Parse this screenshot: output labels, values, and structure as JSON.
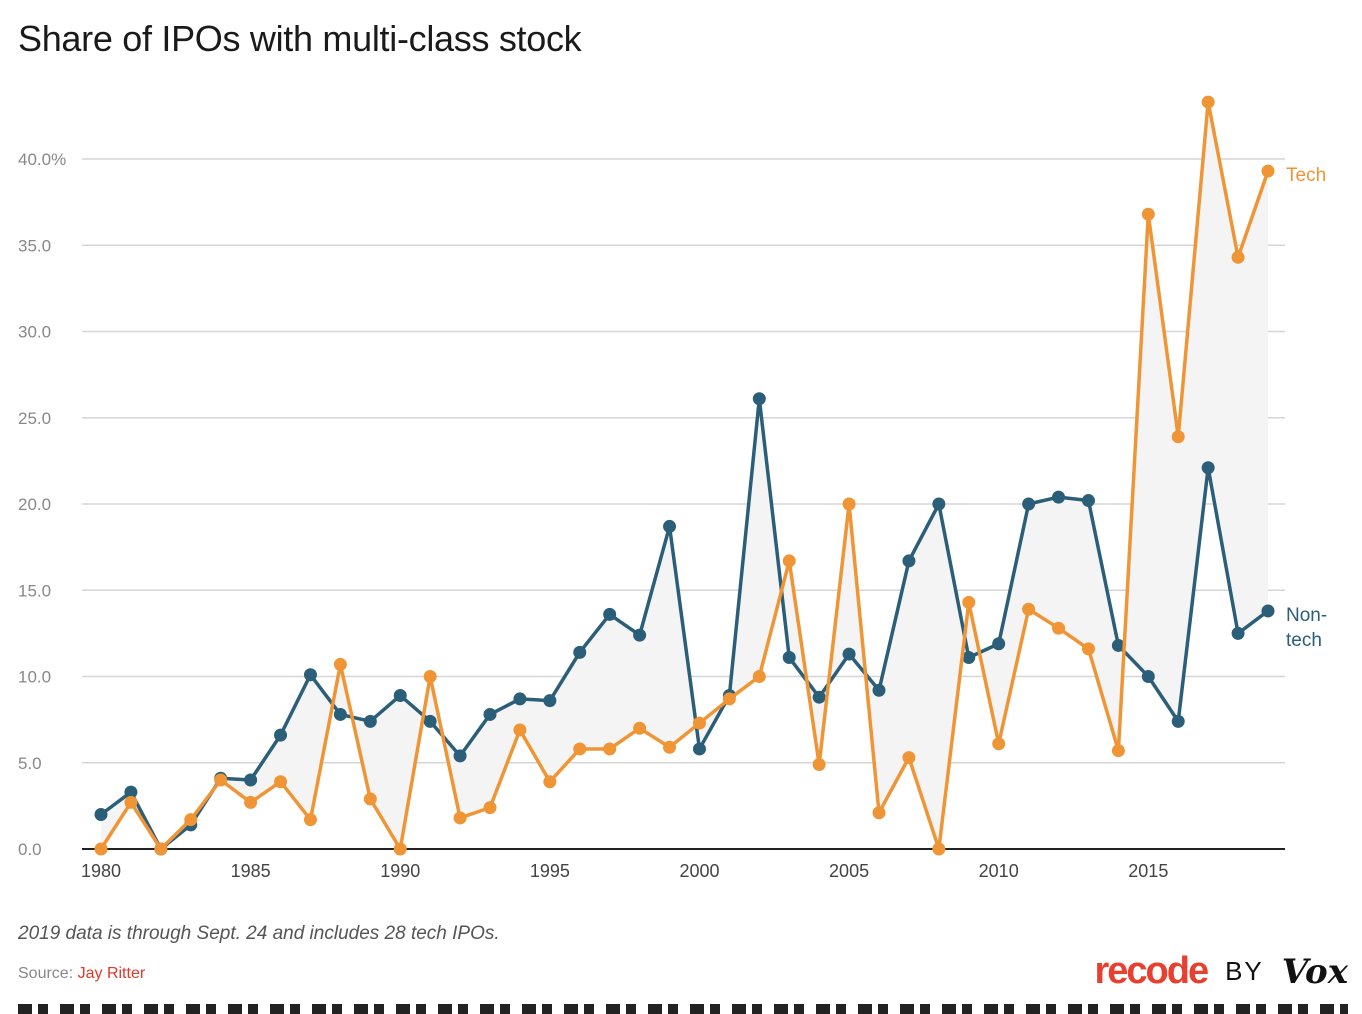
{
  "chart_data": {
    "type": "line",
    "title": "Share of IPOs with multi-class stock",
    "x": [
      1980,
      1981,
      1982,
      1983,
      1984,
      1985,
      1986,
      1987,
      1988,
      1989,
      1990,
      1991,
      1992,
      1993,
      1994,
      1995,
      1996,
      1997,
      1998,
      1999,
      2000,
      2001,
      2002,
      2003,
      2004,
      2005,
      2006,
      2007,
      2008,
      2009,
      2010,
      2011,
      2012,
      2013,
      2014,
      2015,
      2016,
      2017,
      2018,
      2019
    ],
    "series": [
      {
        "name": "Tech",
        "color": "#ef9535",
        "values": [
          0,
          2.7,
          0,
          1.7,
          4.0,
          2.7,
          3.9,
          1.7,
          10.7,
          2.9,
          0,
          10.0,
          1.8,
          2.4,
          6.9,
          3.9,
          5.8,
          5.8,
          7.0,
          5.9,
          7.3,
          8.7,
          10.0,
          16.7,
          4.9,
          20.0,
          2.1,
          5.3,
          0,
          14.3,
          6.1,
          13.9,
          12.8,
          11.6,
          5.7,
          36.8,
          23.9,
          43.3,
          34.3,
          39.3
        ]
      },
      {
        "name": "Non-tech",
        "label_lines": [
          "Non-",
          "tech"
        ],
        "color": "#2b5e78",
        "values": [
          2.0,
          3.3,
          0,
          1.4,
          4.1,
          4.0,
          6.6,
          10.1,
          7.8,
          7.4,
          8.9,
          7.4,
          5.4,
          7.8,
          8.7,
          8.6,
          11.4,
          13.6,
          12.4,
          18.7,
          5.8,
          8.9,
          26.1,
          11.1,
          8.8,
          11.3,
          9.2,
          16.7,
          20.0,
          11.1,
          11.9,
          20.0,
          20.4,
          20.2,
          11.8,
          10.0,
          7.4,
          22.1,
          12.5,
          13.8
        ]
      }
    ],
    "xticks": [
      1980,
      1985,
      1990,
      1995,
      2000,
      2005,
      2010,
      2015
    ],
    "xtick_labels": [
      "1980",
      "1985",
      "1990",
      "1995",
      "2000",
      "2005",
      "2010",
      "2015"
    ],
    "yticks": [
      0,
      5,
      10,
      15,
      20,
      25,
      30,
      35,
      40
    ],
    "ytick_labels": [
      "0.0",
      "5.0",
      "10.0",
      "15.0",
      "20.0",
      "25.0",
      "30.0",
      "35.0",
      "40.0%"
    ],
    "ylim": [
      0,
      40
    ],
    "xlim": [
      1980,
      2019
    ],
    "grid": true,
    "fill_between_color": "#f4f4f4",
    "xlabel": "",
    "ylabel": ""
  },
  "note": "2019 data is through Sept. 24 and includes 28 tech IPOs.",
  "source": {
    "label": "Source:",
    "name": "Jay Ritter"
  },
  "brand": {
    "recode": "recode",
    "by": "BY",
    "vox": "Vox"
  }
}
